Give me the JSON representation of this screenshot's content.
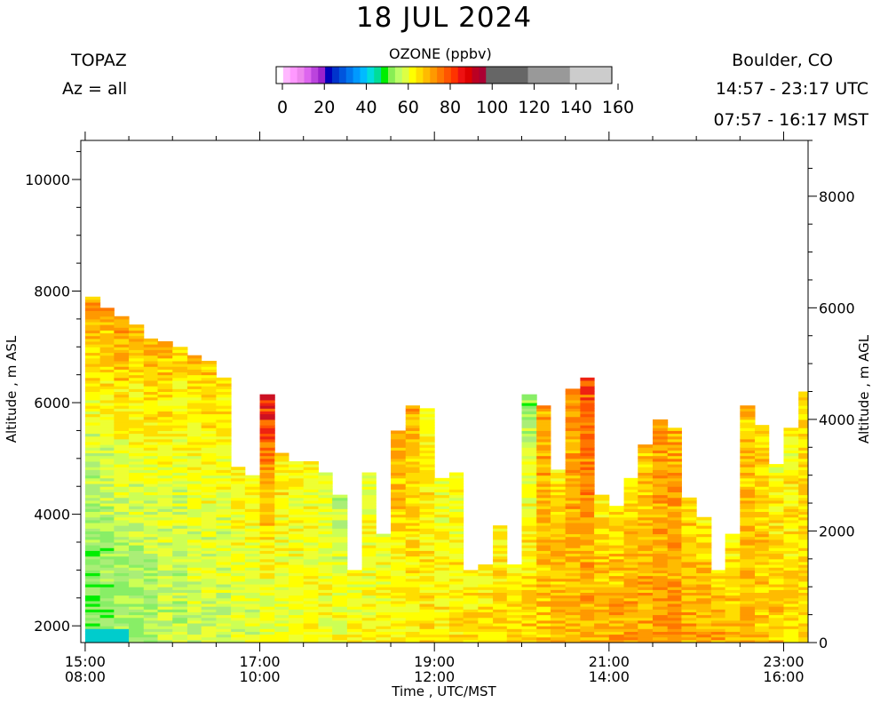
{
  "header": {
    "title": "18 JUL 2024",
    "instrument": "TOPAZ",
    "azimuth": "Az = all",
    "location": "Boulder, CO",
    "utc_range": "14:57 - 23:17 UTC",
    "mst_range": "07:57 - 16:17 MST"
  },
  "colorbar": {
    "title": "OZONE (ppbv)",
    "tick_labels": [
      "0",
      "20",
      "40",
      "60",
      "80",
      "100",
      "120",
      "140",
      "160"
    ],
    "tick_values": [
      0,
      20,
      40,
      60,
      80,
      100,
      120,
      140,
      160
    ],
    "colors": [
      "#ffffff",
      "#ffb8ff",
      "#ff99ff",
      "#ee88ee",
      "#dd66ee",
      "#bb44dd",
      "#9922cc",
      "#0000bb",
      "#0033cc",
      "#0055dd",
      "#0077ee",
      "#0099ff",
      "#00bbff",
      "#00dddd",
      "#00dd99",
      "#00ee00",
      "#88ee55",
      "#bbff66",
      "#ddff44",
      "#ffff00",
      "#ffdd00",
      "#ffbb00",
      "#ff9900",
      "#ff7700",
      "#ff5500",
      "#ff3300",
      "#ee1111",
      "#dd0000",
      "#bb0022",
      "#aa0033"
    ],
    "upper_colors": [
      "#666666",
      "#999999",
      "#cccccc"
    ]
  },
  "chart_data": {
    "type": "heatmap",
    "variable": "Ozone",
    "units": "ppbv",
    "xlabel": "Time , UTC/MST",
    "ylabel_left": "Altitude , m ASL",
    "ylabel_right": "Altitude , m AGL",
    "x_ticks": [
      {
        "value": 15,
        "utc": "15:00",
        "mst": "08:00"
      },
      {
        "value": 17,
        "utc": "17:00",
        "mst": "10:00"
      },
      {
        "value": 19,
        "utc": "19:00",
        "mst": "12:00"
      },
      {
        "value": 21,
        "utc": "21:00",
        "mst": "14:00"
      },
      {
        "value": 23,
        "utc": "23:00",
        "mst": "16:00"
      }
    ],
    "xlim": [
      14.95,
      23.28
    ],
    "ylim_asl": [
      1700,
      10700
    ],
    "yticks_asl": [
      2000,
      4000,
      6000,
      8000,
      10000
    ],
    "yticks_agl": [
      0,
      2000,
      4000,
      6000,
      8000
    ],
    "agl_offset": 1700,
    "profile_times_utc": [
      15.0,
      15.17,
      15.33,
      15.5,
      15.67,
      15.83,
      16.0,
      16.17,
      16.33,
      16.5,
      16.67,
      16.83,
      17.0,
      17.17,
      17.33,
      17.5,
      17.67,
      17.83,
      18.0,
      18.17,
      18.33,
      18.5,
      18.67,
      18.83,
      19.0,
      19.17,
      19.33,
      19.5,
      19.67,
      19.83,
      20.0,
      20.17,
      20.33,
      20.5,
      20.67,
      20.83,
      21.0,
      21.17,
      21.33,
      21.5,
      21.67,
      21.83,
      22.0,
      22.17,
      22.33,
      22.5,
      22.67,
      22.83,
      23.0,
      23.17
    ],
    "profile_top_altitude_m_asl": [
      7900,
      7700,
      7550,
      7400,
      7150,
      7100,
      7000,
      6850,
      6750,
      6450,
      4850,
      4700,
      6150,
      5100,
      4950,
      4950,
      4750,
      4350,
      3000,
      4750,
      3650,
      5500,
      5950,
      5900,
      4650,
      4750,
      3000,
      3100,
      3800,
      3100,
      6150,
      5950,
      4800,
      6250,
      6450,
      4350,
      4150,
      4650,
      5250,
      5700,
      5550,
      4300,
      3950,
      3000,
      3650,
      5950,
      5600,
      4900,
      5550,
      6200
    ],
    "profile_surface_ozone_ppbv": [
      56,
      58,
      60,
      62,
      62,
      64,
      64,
      66,
      66,
      66,
      68,
      68,
      70,
      70,
      70,
      72,
      72,
      72,
      74,
      74,
      74,
      74,
      74,
      76,
      76,
      76,
      78,
      78,
      78,
      78,
      80,
      80,
      82,
      82,
      82,
      84,
      84,
      84,
      84,
      84,
      86,
      84,
      84,
      84,
      82,
      82,
      80,
      80,
      78,
      78
    ],
    "profile_top_ozone_ppbv": [
      86,
      84,
      86,
      82,
      84,
      82,
      80,
      80,
      80,
      78,
      76,
      74,
      100,
      76,
      74,
      72,
      70,
      62,
      70,
      68,
      70,
      84,
      84,
      74,
      70,
      70,
      72,
      72,
      74,
      72,
      58,
      84,
      76,
      86,
      94,
      74,
      74,
      76,
      80,
      86,
      84,
      76,
      74,
      76,
      74,
      80,
      78,
      72,
      72,
      78
    ]
  }
}
